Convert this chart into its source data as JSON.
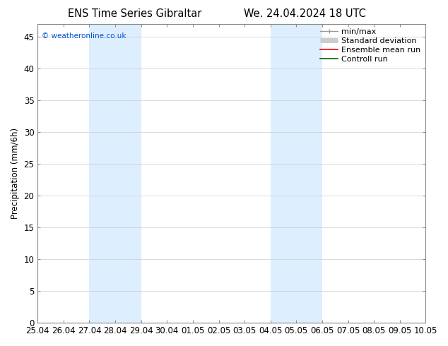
{
  "title_left": "ENS Time Series Gibraltar",
  "title_right": "We. 24.04.2024 18 UTC",
  "ylabel": "Precipitation (mm/6h)",
  "ylim": [
    0,
    47
  ],
  "yticks": [
    0,
    5,
    10,
    15,
    20,
    25,
    30,
    35,
    40,
    45
  ],
  "xtick_labels": [
    "25.04",
    "26.04",
    "27.04",
    "28.04",
    "29.04",
    "30.04",
    "01.05",
    "02.05",
    "03.05",
    "04.05",
    "05.05",
    "06.05",
    "07.05",
    "08.05",
    "09.05",
    "10.05"
  ],
  "shaded_regions": [
    {
      "x0_label": "27.04",
      "x1_label": "29.04",
      "color": "#ddeeff"
    },
    {
      "x0_label": "04.05",
      "x1_label": "06.05",
      "color": "#ddeeff"
    }
  ],
  "watermark_text": "© weatheronline.co.uk",
  "watermark_color": "#0055cc",
  "legend_entries": [
    {
      "label": "min/max",
      "color": "#999999",
      "lw": 1.0,
      "style": "line_with_caps"
    },
    {
      "label": "Standard deviation",
      "color": "#cccccc",
      "lw": 5,
      "style": "thick_line"
    },
    {
      "label": "Ensemble mean run",
      "color": "#ff0000",
      "lw": 1.2,
      "style": "line"
    },
    {
      "label": "Controll run",
      "color": "#006600",
      "lw": 1.2,
      "style": "line"
    }
  ],
  "background_color": "#ffffff",
  "font_size": 8.5,
  "title_font_size": 10.5
}
